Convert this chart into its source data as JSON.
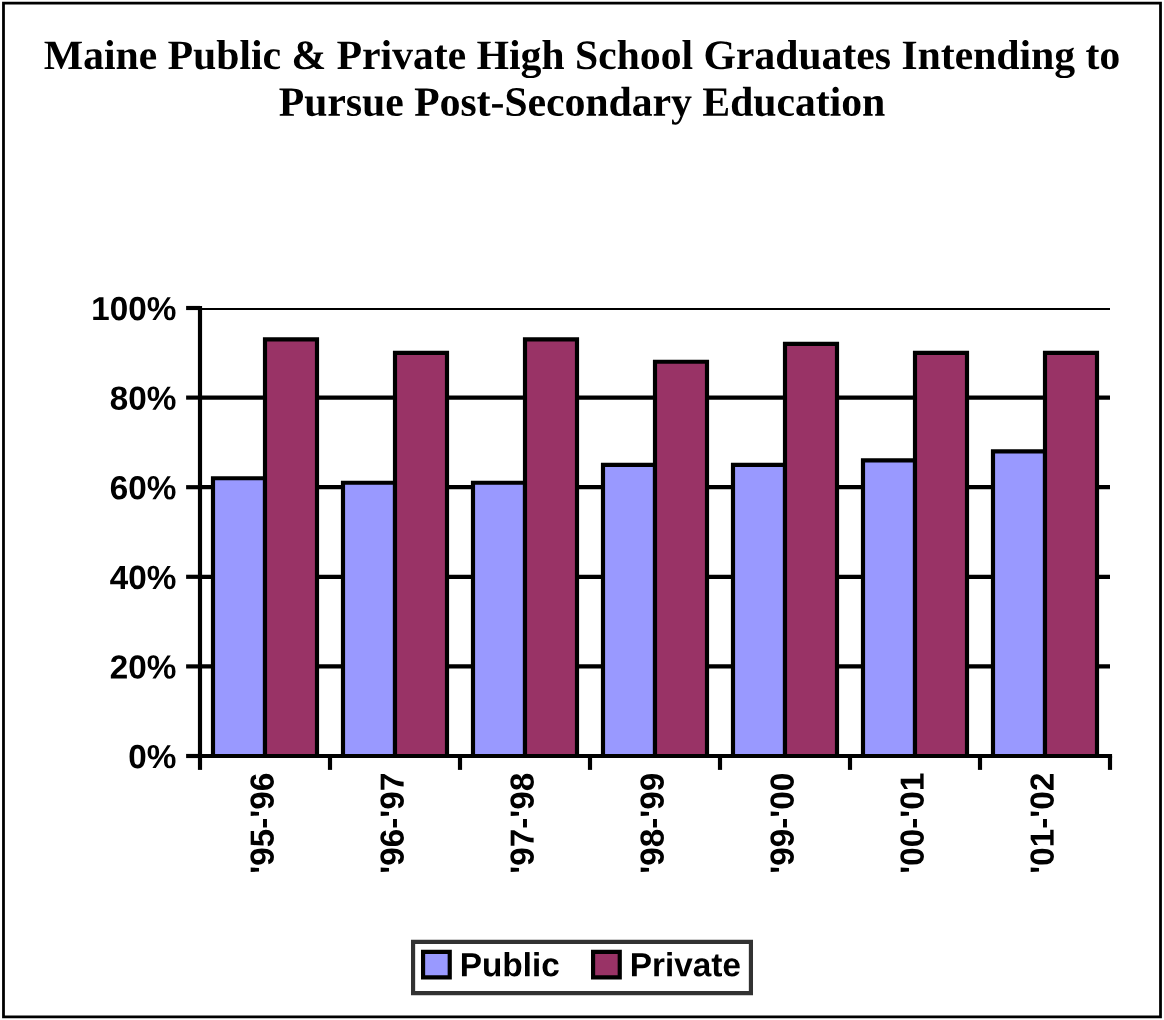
{
  "chart_data": {
    "type": "bar",
    "title": "Maine Public & Private High School Graduates Intending to Pursue Post-Secondary Education",
    "categories": [
      "'95-'96",
      "'96-'97",
      "'97-'98",
      "'98-'99",
      "'99-'00",
      "'00-'01",
      "'01-'02"
    ],
    "series": [
      {
        "name": "Public",
        "color": "#9999ff",
        "values": [
          62,
          61,
          61,
          65,
          65,
          66,
          68
        ]
      },
      {
        "name": "Private",
        "color": "#993366",
        "values": [
          93,
          90,
          93,
          88,
          92,
          90,
          90
        ]
      }
    ],
    "ylim": [
      0,
      100
    ],
    "yticks": [
      {
        "value": 0,
        "label": "0%"
      },
      {
        "value": 20,
        "label": "20%"
      },
      {
        "value": 40,
        "label": "40%"
      },
      {
        "value": 60,
        "label": "60%"
      },
      {
        "value": 80,
        "label": "80%"
      },
      {
        "value": 100,
        "label": "100%"
      }
    ],
    "grid": "y",
    "legend": "bottom"
  }
}
